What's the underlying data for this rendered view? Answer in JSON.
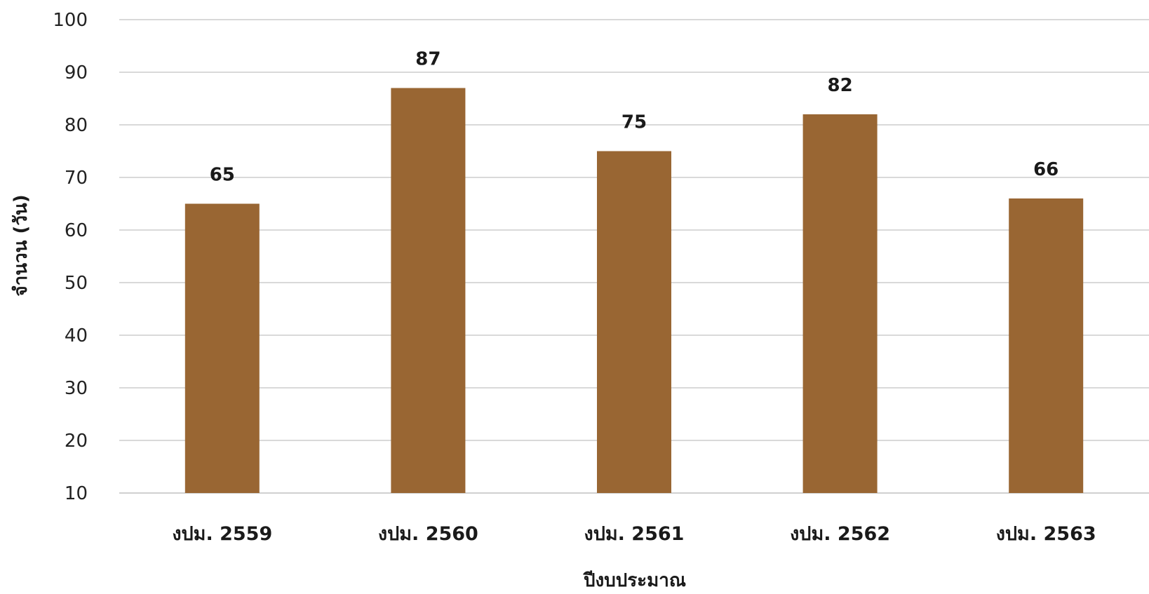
{
  "chart_data": {
    "type": "bar",
    "title": "",
    "xlabel": "ปีงบประมาณ",
    "ylabel": "จำนวน (วัน)",
    "categories": [
      "งปม. 2559",
      "งปม. 2560",
      "งปม. 2561",
      "งปม. 2562",
      "งปม. 2563"
    ],
    "values": [
      65,
      87,
      75,
      82,
      66
    ],
    "ylim": [
      10,
      100
    ],
    "yticks": [
      10,
      20,
      30,
      40,
      50,
      60,
      70,
      80,
      90,
      100
    ],
    "grid": true,
    "legend": false,
    "bar_color": "#996633",
    "grid_color": "#d9d9d9"
  }
}
